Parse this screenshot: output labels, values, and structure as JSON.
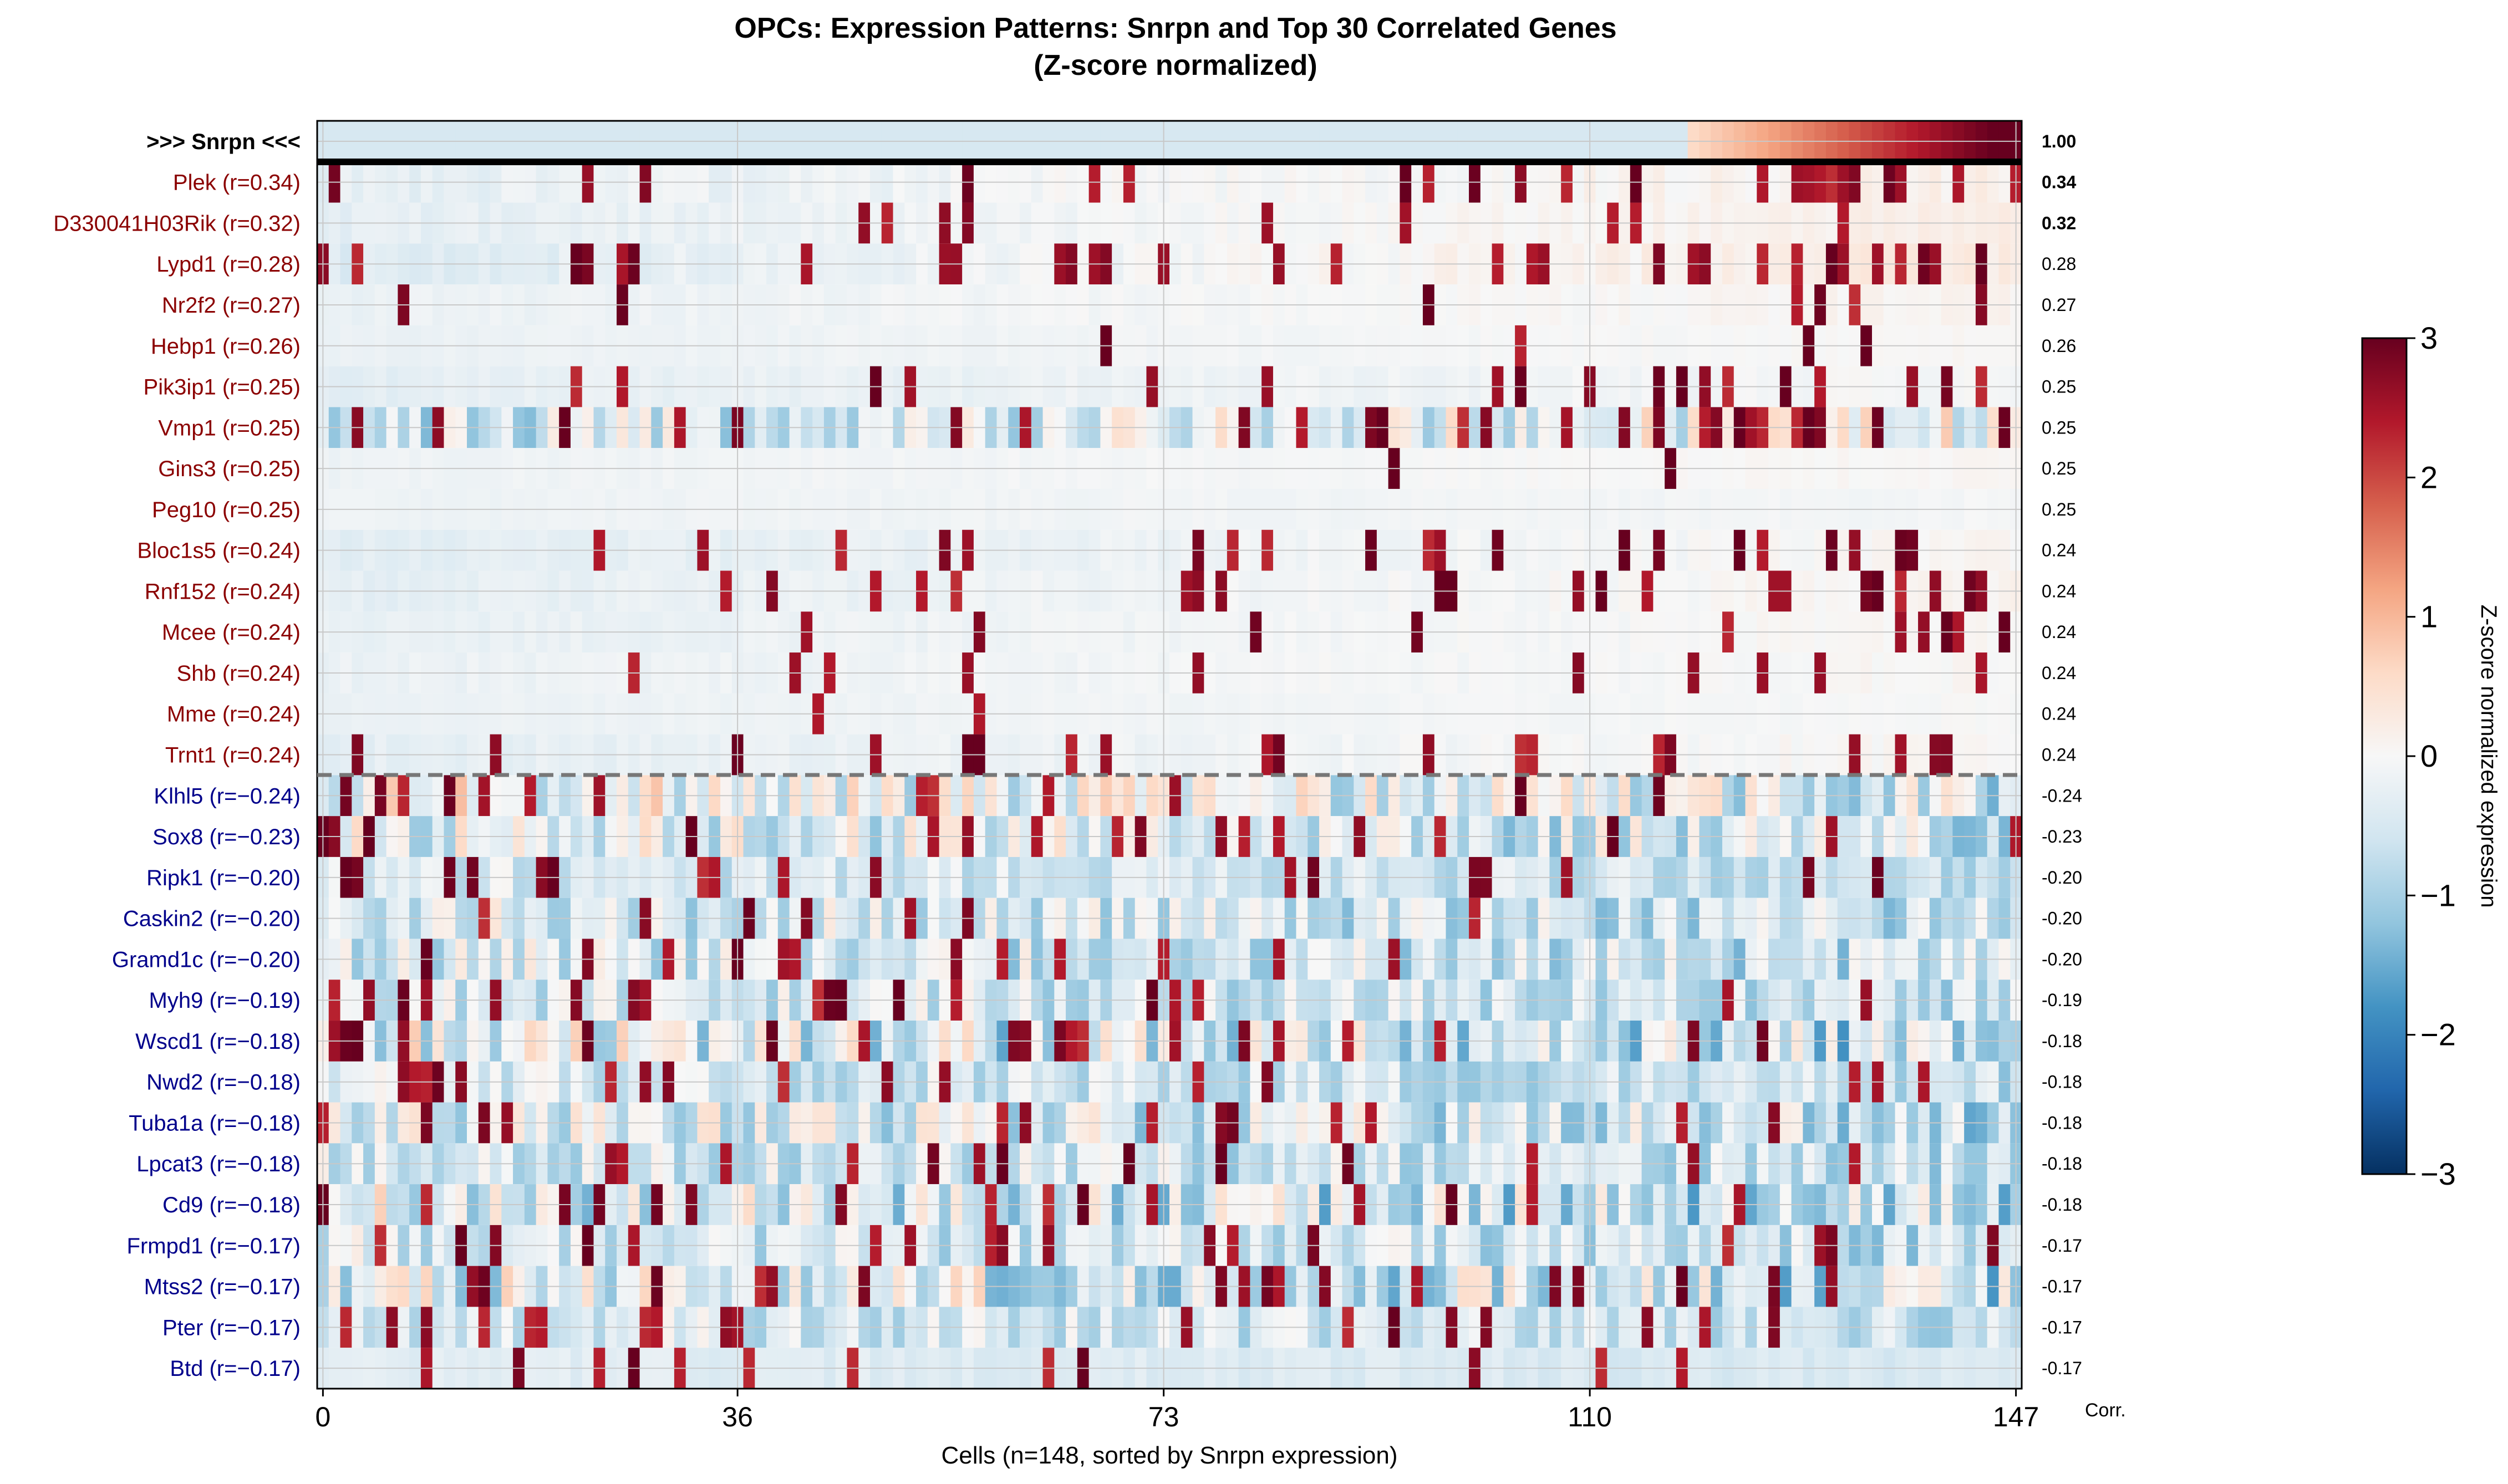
{
  "chart_data": {
    "type": "heatmap",
    "title": "OPCs: Expression Patterns: Snrpn and Top 30 Correlated Genes",
    "subtitle": "(Z-score normalized)",
    "xlabel": "Cells (n=148, sorted by Snrpn expression)",
    "x_ticks": [
      "0",
      "36",
      "73",
      "110",
      "147"
    ],
    "x_tick_values": [
      0,
      36,
      73,
      110,
      147
    ],
    "n_cells": 148,
    "corr_header": "Corr.",
    "colorbar": {
      "label": "Z-score normalized expression",
      "ticks": [
        "3",
        "2",
        "1",
        "0",
        "−1",
        "−2",
        "−3"
      ],
      "range": [
        -3,
        3
      ],
      "colormap": "RdBu_r"
    },
    "colors": {
      "positive_label": "#8b0000",
      "negative_label": "#00008b",
      "target_label": "#000000"
    },
    "target_gene": {
      "label": ">>> Snrpn <<<",
      "corr": "1.00"
    },
    "genes": [
      {
        "label": "Plek (r=0.34)",
        "corr": "0.34",
        "bold": true,
        "seed": 11,
        "base": -0.3,
        "noise": 0.15,
        "spike_p": 0.05,
        "late": 0.25
      },
      {
        "label": "D330041H03Rik (r=0.32)",
        "corr": "0.32",
        "bold": true,
        "seed": 12,
        "base": -0.3,
        "noise": 0.1,
        "spike_p": 0.025,
        "late": 0.25
      },
      {
        "label": "Lypd1 (r=0.28)",
        "corr": "0.28",
        "seed": 13,
        "base": -0.4,
        "noise": 0.15,
        "spike_p": 0.08,
        "late": 0.35
      },
      {
        "label": "Nr2f2 (r=0.27)",
        "corr": "0.27",
        "seed": 14,
        "base": -0.2,
        "noise": 0.08,
        "spike_p": 0.02,
        "late": 0.15
      },
      {
        "label": "Hebp1 (r=0.26)",
        "corr": "0.26",
        "seed": 15,
        "base": -0.2,
        "noise": 0.05,
        "spike_p": 0.01,
        "late": 0.12
      },
      {
        "label": "Pik3ip1 (r=0.25)",
        "corr": "0.25",
        "seed": 16,
        "base": -0.3,
        "noise": 0.1,
        "spike_p": 0.06,
        "late": 0.15
      },
      {
        "label": "Vmp1 (r=0.25)",
        "corr": "0.25",
        "seed": 17,
        "base": -0.5,
        "noise": 0.9,
        "spike_p": 0.08,
        "late": 0.2
      },
      {
        "label": "Gins3 (r=0.25)",
        "corr": "0.25",
        "seed": 18,
        "base": -0.15,
        "noise": 0.05,
        "spike_p": 0.005,
        "late": 0.1
      },
      {
        "label": "Peg10 (r=0.25)",
        "corr": "0.25",
        "seed": 19,
        "base": -0.15,
        "noise": 0.05,
        "spike_p": 0.002,
        "late": 0.05
      },
      {
        "label": "Bloc1s5 (r=0.24)",
        "corr": "0.24",
        "seed": 20,
        "base": -0.35,
        "noise": 0.1,
        "spike_p": 0.05,
        "late": 0.2
      },
      {
        "label": "Rnf152 (r=0.24)",
        "corr": "0.24",
        "seed": 21,
        "base": -0.3,
        "noise": 0.1,
        "spike_p": 0.05,
        "late": 0.2
      },
      {
        "label": "Mcee (r=0.24)",
        "corr": "0.24",
        "seed": 22,
        "base": -0.25,
        "noise": 0.08,
        "spike_p": 0.02,
        "late": 0.15
      },
      {
        "label": "Shb (r=0.24)",
        "corr": "0.24",
        "seed": 23,
        "base": -0.2,
        "noise": 0.08,
        "spike_p": 0.02,
        "late": 0.12
      },
      {
        "label": "Mme (r=0.24)",
        "corr": "0.24",
        "seed": 24,
        "base": -0.2,
        "noise": 0.05,
        "spike_p": 0.01,
        "late": 0.1
      },
      {
        "label": "Trnt1 (r=0.24)",
        "corr": "0.24",
        "seed": 25,
        "base": -0.3,
        "noise": 0.1,
        "spike_p": 0.05,
        "late": 0.18
      },
      {
        "label": "Klhl5 (r=−0.24)",
        "corr": "-0.24",
        "seed": 26,
        "base": 0.0,
        "noise": 1.0,
        "spike_p": 0.06,
        "late": -0.25
      },
      {
        "label": "Sox8 (r=−0.23)",
        "corr": "-0.23",
        "seed": 27,
        "base": -0.2,
        "noise": 0.9,
        "spike_p": 0.06,
        "late": -0.2
      },
      {
        "label": "Ripk1 (r=−0.20)",
        "corr": "-0.20",
        "seed": 28,
        "base": -0.4,
        "noise": 0.5,
        "spike_p": 0.08,
        "late": -0.15
      },
      {
        "label": "Caskin2 (r=−0.20)",
        "corr": "-0.20",
        "seed": 29,
        "base": -0.4,
        "noise": 0.8,
        "spike_p": 0.05,
        "late": -0.15
      },
      {
        "label": "Gramd1c (r=−0.20)",
        "corr": "-0.20",
        "seed": 30,
        "base": -0.4,
        "noise": 0.8,
        "spike_p": 0.06,
        "late": -0.15
      },
      {
        "label": "Myh9 (r=−0.19)",
        "corr": "-0.19",
        "seed": 31,
        "base": -0.4,
        "noise": 0.7,
        "spike_p": 0.06,
        "late": -0.15
      },
      {
        "label": "Wscd1 (r=−0.18)",
        "corr": "-0.18",
        "seed": 32,
        "base": -0.3,
        "noise": 1.1,
        "spike_p": 0.06,
        "late": -0.25
      },
      {
        "label": "Nwd2 (r=−0.18)",
        "corr": "-0.18",
        "seed": 33,
        "base": -0.4,
        "noise": 0.6,
        "spike_p": 0.07,
        "late": -0.15
      },
      {
        "label": "Tuba1a (r=−0.18)",
        "corr": "-0.18",
        "seed": 34,
        "base": -0.3,
        "noise": 0.9,
        "spike_p": 0.06,
        "late": -0.2
      },
      {
        "label": "Lpcat3 (r=−0.18)",
        "corr": "-0.18",
        "seed": 35,
        "base": -0.4,
        "noise": 0.7,
        "spike_p": 0.07,
        "late": -0.15
      },
      {
        "label": "Cd9 (r=−0.18)",
        "corr": "-0.18",
        "seed": 36,
        "base": -0.3,
        "noise": 1.1,
        "spike_p": 0.06,
        "late": -0.25
      },
      {
        "label": "Frmpd1 (r=−0.17)",
        "corr": "-0.17",
        "seed": 37,
        "base": -0.4,
        "noise": 0.7,
        "spike_p": 0.07,
        "late": -0.15
      },
      {
        "label": "Mtss2 (r=−0.17)",
        "corr": "-0.17",
        "seed": 38,
        "base": -0.2,
        "noise": 1.1,
        "spike_p": 0.06,
        "late": -0.25
      },
      {
        "label": "Pter (r=−0.17)",
        "corr": "-0.17",
        "seed": 39,
        "base": -0.4,
        "noise": 0.6,
        "spike_p": 0.07,
        "late": -0.15
      },
      {
        "label": "Btd (r=−0.17)",
        "corr": "-0.17",
        "seed": 40,
        "base": -0.3,
        "noise": 0.15,
        "spike_p": 0.06,
        "late": -0.1
      }
    ]
  }
}
